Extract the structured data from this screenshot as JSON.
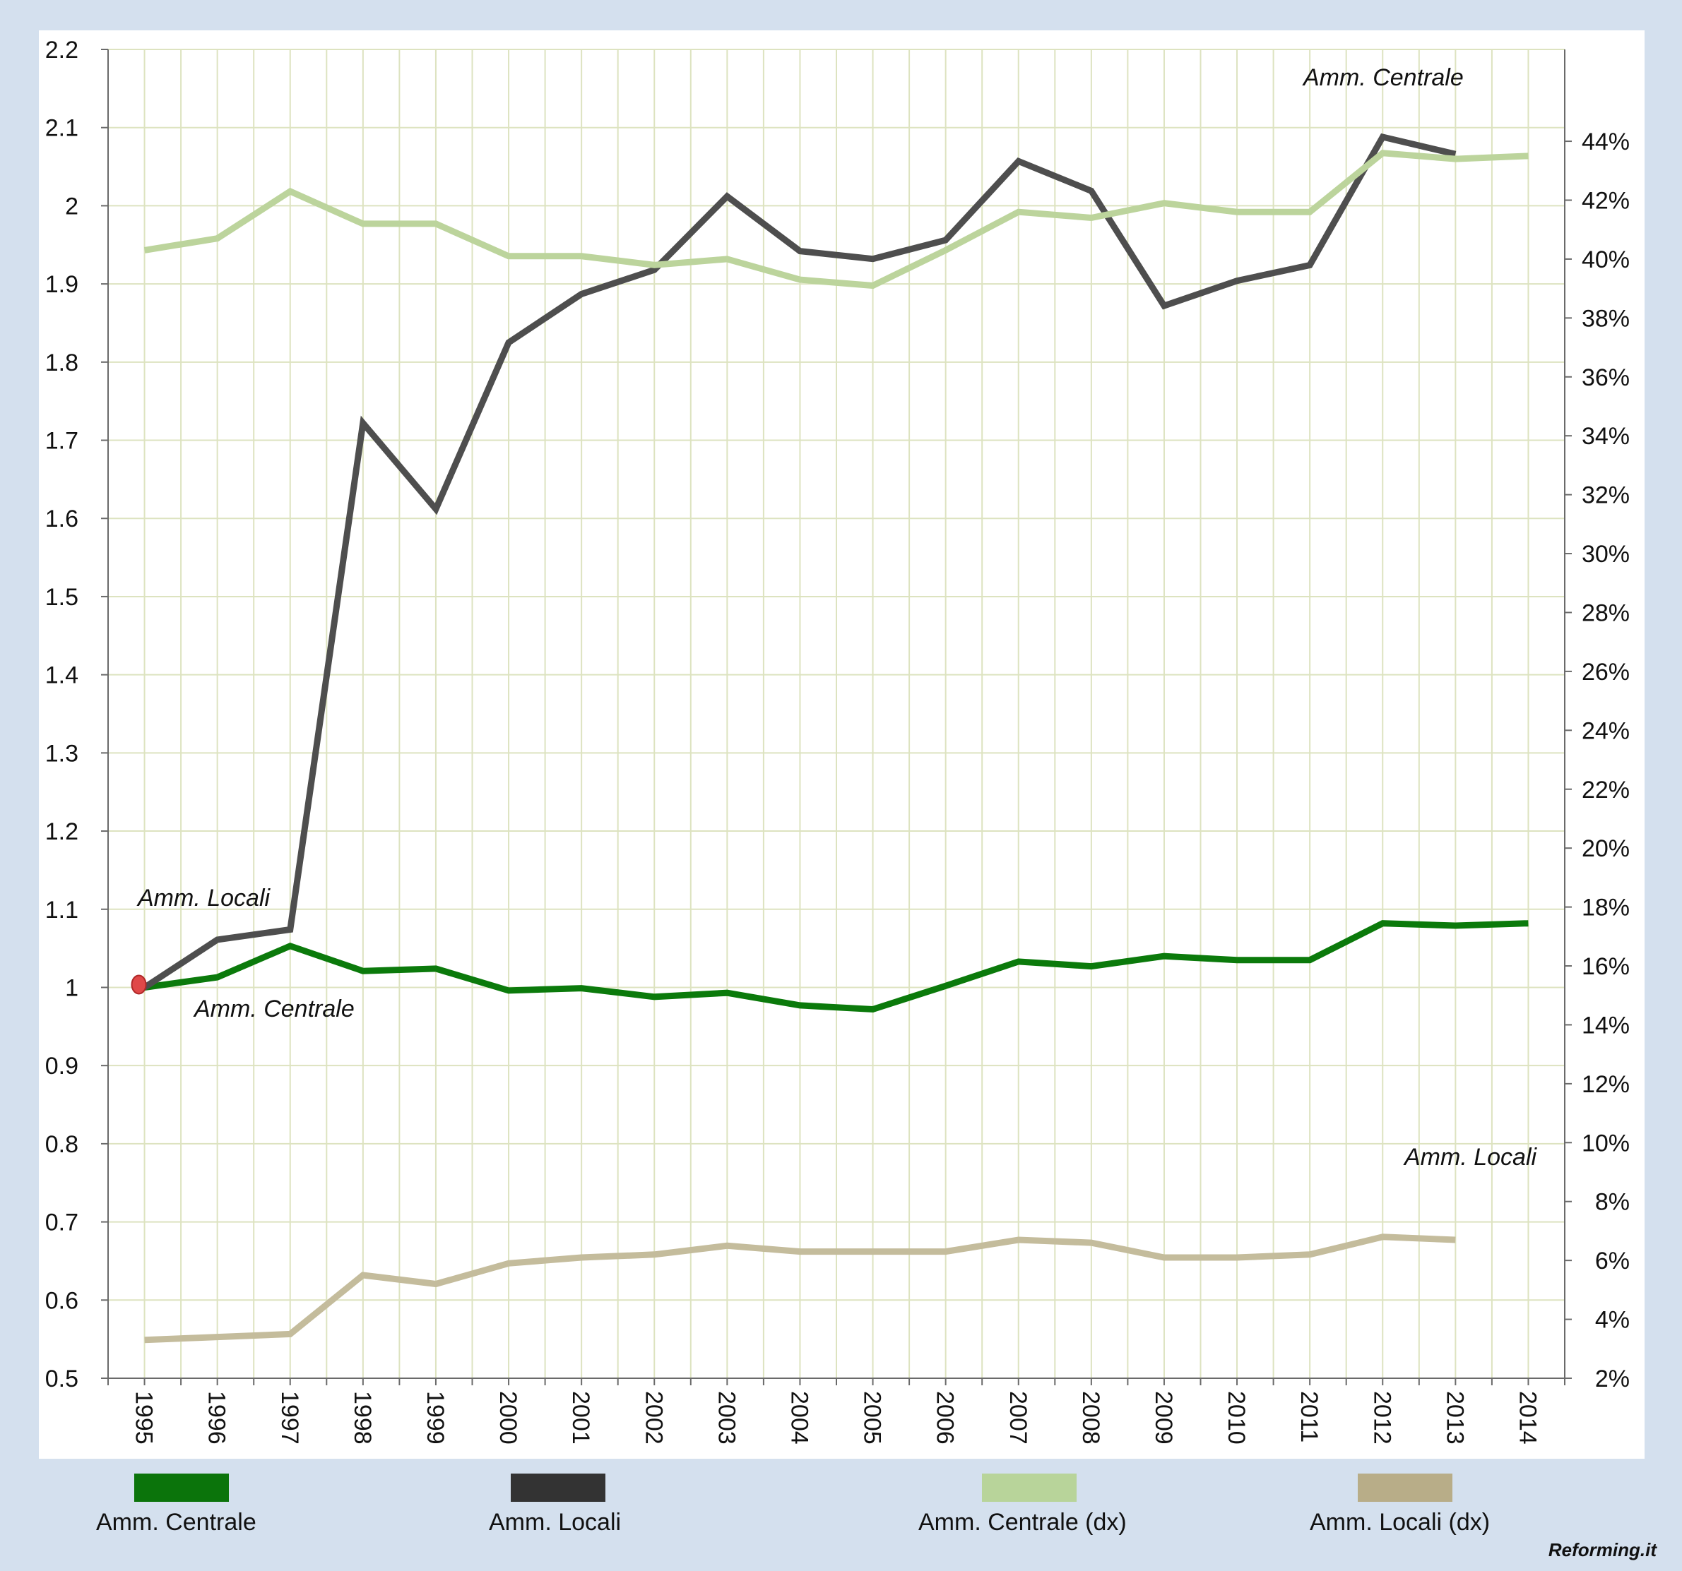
{
  "chart_data": {
    "type": "line",
    "categories": [
      "1995",
      "1996",
      "1997",
      "1998",
      "1999",
      "2000",
      "2001",
      "2002",
      "2003",
      "2004",
      "2005",
      "2006",
      "2007",
      "2008",
      "2009",
      "2010",
      "2011",
      "2012",
      "2013",
      "2014"
    ],
    "y_left": {
      "ylim": [
        0.5,
        2.2
      ],
      "ticks": [
        "0.5",
        "0.6",
        "0.7",
        "0.8",
        "0.9",
        "1",
        "1.1",
        "1.2",
        "1.3",
        "1.4",
        "1.5",
        "1.6",
        "1.7",
        "1.8",
        "1.9",
        "2",
        "2.1",
        "2.2"
      ]
    },
    "y_right": {
      "ylim": [
        2,
        45
      ],
      "ticks": [
        "2%",
        "4%",
        "6%",
        "8%",
        "10%",
        "12%",
        "14%",
        "16%",
        "18%",
        "20%",
        "22%",
        "24%",
        "26%",
        "28%",
        "30%",
        "32%",
        "34%",
        "36%",
        "38%",
        "40%",
        "42%",
        "44%"
      ]
    },
    "grid": true,
    "legend_position": "bottom",
    "series": [
      {
        "name": "Amm. Centrale",
        "axis": "left",
        "color": "#0b7a0b",
        "values": [
          1.0,
          1.013,
          1.053,
          1.021,
          1.024,
          0.996,
          0.999,
          0.988,
          0.993,
          0.977,
          0.972,
          1.002,
          1.033,
          1.027,
          1.04,
          1.035,
          1.035,
          1.082,
          1.079,
          1.082
        ]
      },
      {
        "name": "Amm. Locali",
        "axis": "left",
        "color": "#4e4e4e",
        "values": [
          1.0,
          1.061,
          1.074,
          1.722,
          1.612,
          1.825,
          1.887,
          1.918,
          2.012,
          1.942,
          1.932,
          1.956,
          2.057,
          2.019,
          1.872,
          1.904,
          1.924,
          2.088,
          2.066,
          null
        ]
      },
      {
        "name": "Amm. Centrale (dx)",
        "axis": "right",
        "color": "#bcd49c",
        "values": [
          40.3,
          40.7,
          42.3,
          41.2,
          41.2,
          40.1,
          40.1,
          39.8,
          40.0,
          39.3,
          39.1,
          40.3,
          41.6,
          41.4,
          41.9,
          41.6,
          41.6,
          43.6,
          43.4,
          43.5
        ]
      },
      {
        "name": "Amm. Locali (dx)",
        "axis": "right",
        "color": "#c4bc9c",
        "values": [
          3.3,
          3.4,
          3.5,
          5.5,
          5.2,
          5.9,
          6.1,
          6.2,
          6.5,
          6.3,
          6.3,
          6.3,
          6.7,
          6.6,
          6.1,
          6.1,
          6.2,
          6.8,
          6.7,
          null
        ]
      }
    ],
    "annotations": [
      {
        "text": "Amm. Locali",
        "near_series": "Amm. Locali"
      },
      {
        "text": "Amm. Centrale",
        "near_series": "Amm. Centrale"
      },
      {
        "text": "Amm. Centrale",
        "near_series": "Amm. Centrale (dx)"
      },
      {
        "text": "Amm. Locali",
        "near_series": "Amm. Locali (dx)"
      }
    ],
    "marker": {
      "category": "1995",
      "value": 1.0,
      "color": "#e04848"
    }
  },
  "legend": [
    {
      "label": "Amm. Centrale",
      "color": "#0b740b"
    },
    {
      "label": "Amm. Locali",
      "color": "#333333"
    },
    {
      "label": "Amm. Centrale (dx)",
      "color": "#b8d49a"
    },
    {
      "label": "Amm. Locali (dx)",
      "color": "#b8ad88"
    }
  ],
  "credit": "Reforming.it"
}
